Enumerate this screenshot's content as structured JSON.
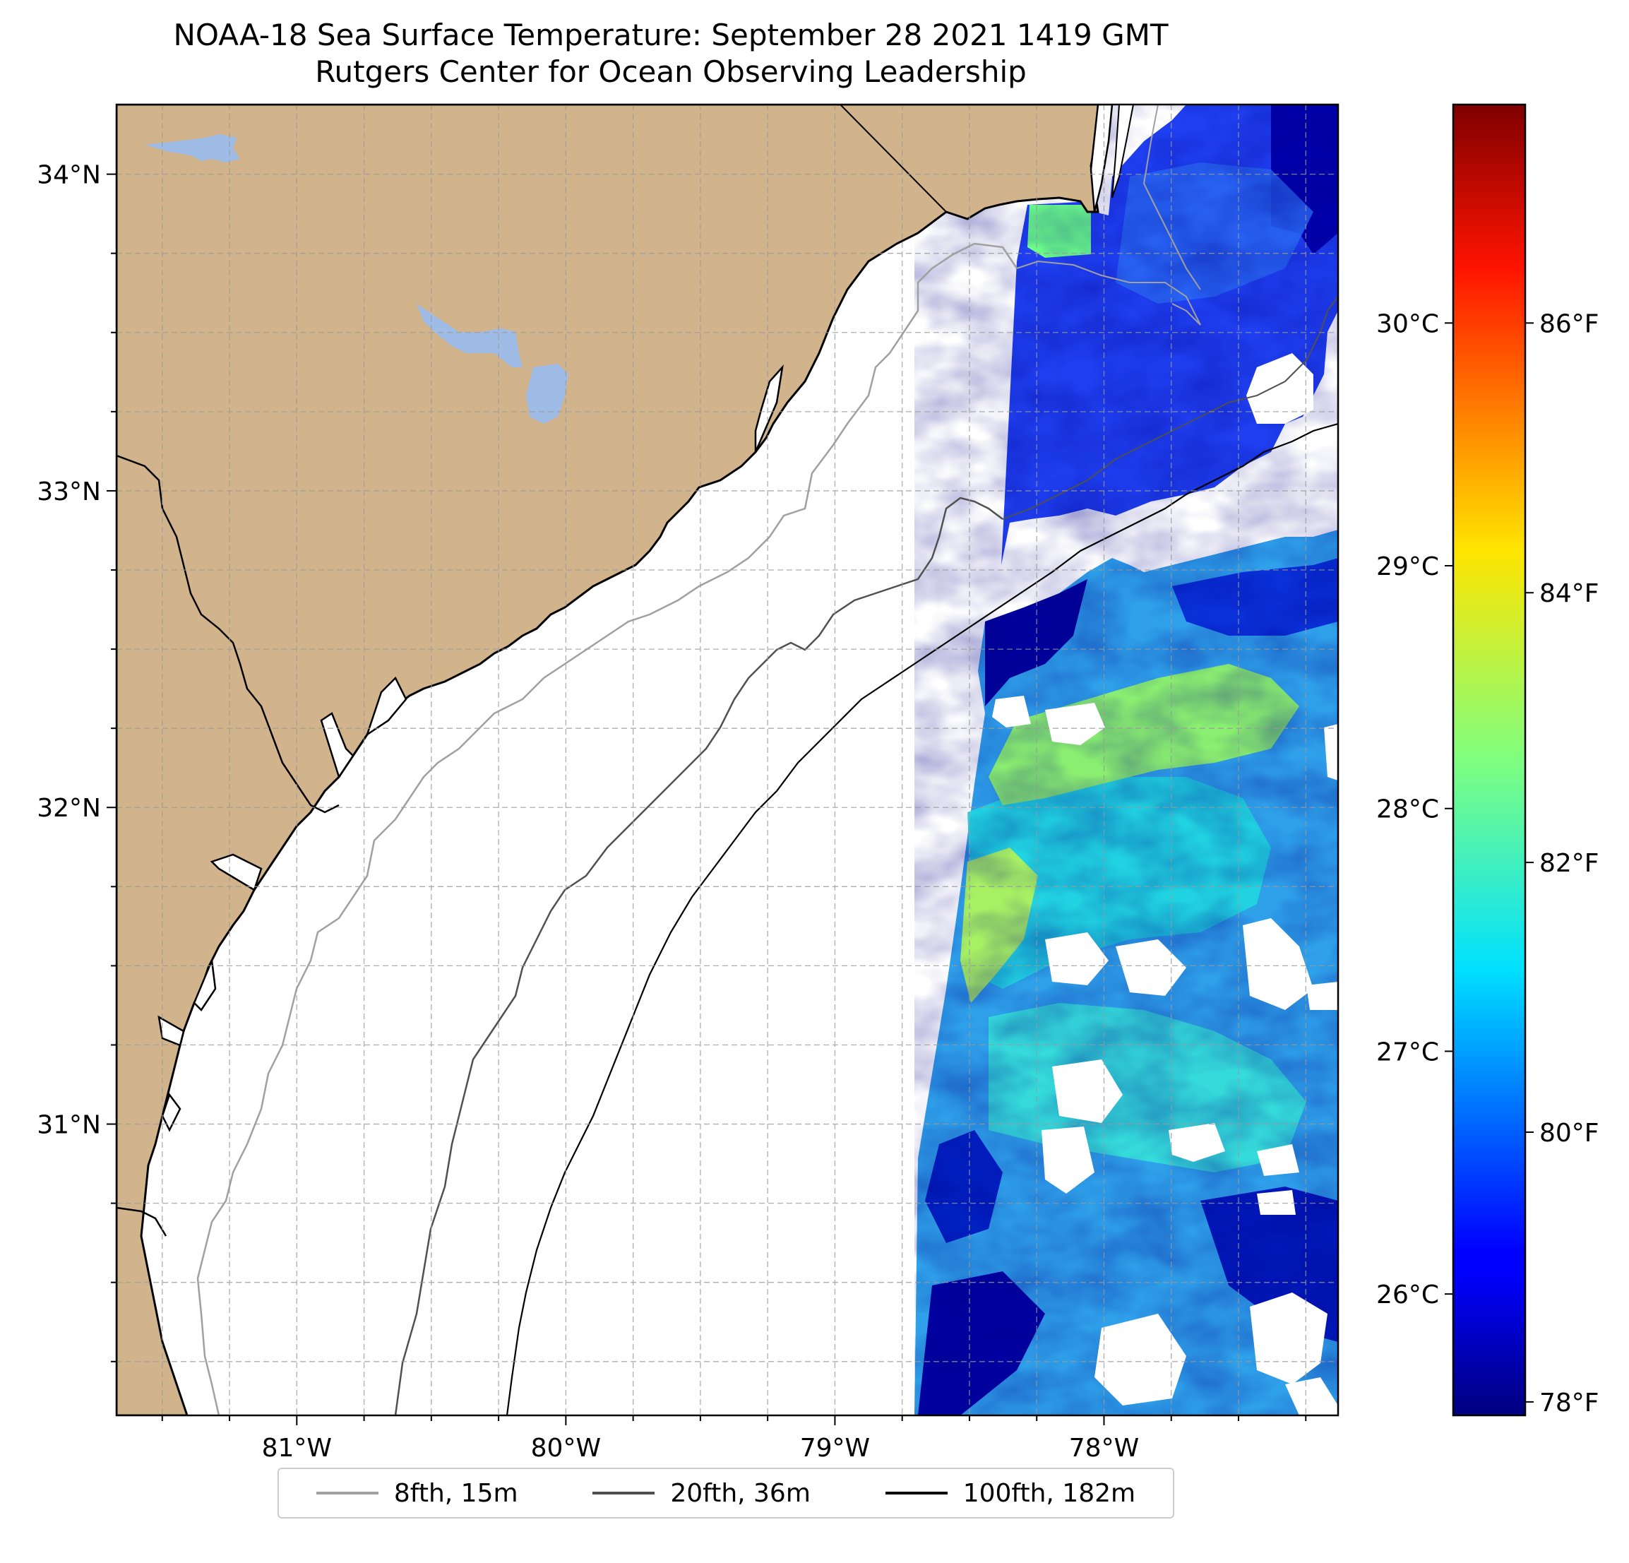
{
  "title": {
    "line1": "NOAA-18 Sea Surface Temperature: September 28 2021 1419 GMT",
    "line2": "Rutgers Center for Ocean Observing Leadership"
  },
  "map": {
    "lon_range": [
      -81.67,
      -77.13
    ],
    "lat_range": [
      30.08,
      34.22
    ],
    "x_ticks": [
      {
        "value": -81,
        "label": "81°W"
      },
      {
        "value": -80,
        "label": "80°W"
      },
      {
        "value": -79,
        "label": "79°W"
      },
      {
        "value": -78,
        "label": "78°W"
      }
    ],
    "y_ticks": [
      {
        "value": 34,
        "label": "34°N"
      },
      {
        "value": 33,
        "label": "33°N"
      },
      {
        "value": 32,
        "label": "32°N"
      },
      {
        "value": 31,
        "label": "31°N"
      }
    ],
    "grid": "on, dashed, every 0.25°",
    "colors": {
      "land": "#d2b48c",
      "lakes": "#9ebce6",
      "ocean_no_data": "#ffffff"
    }
  },
  "colorbar": {
    "colormap": "jet",
    "range_celsius": [
      25.5,
      30.9
    ],
    "celsius_ticks": [
      {
        "value": 26,
        "label": "26°C"
      },
      {
        "value": 27,
        "label": "27°C"
      },
      {
        "value": 28,
        "label": "28°C"
      },
      {
        "value": 29,
        "label": "29°C"
      },
      {
        "value": 30,
        "label": "30°C"
      }
    ],
    "fahrenheit_ticks": [
      {
        "value": 78,
        "label": "78°F"
      },
      {
        "value": 80,
        "label": "80°F"
      },
      {
        "value": 82,
        "label": "82°F"
      },
      {
        "value": 84,
        "label": "84°F"
      },
      {
        "value": 86,
        "label": "86°F"
      }
    ]
  },
  "legend": {
    "placement": "below",
    "items": [
      {
        "label": "8fth, 15m",
        "color": "#a0a0a0"
      },
      {
        "label": "20fth, 36m",
        "color": "#505050"
      },
      {
        "label": "100fth, 182m",
        "color": "#000000"
      }
    ]
  }
}
